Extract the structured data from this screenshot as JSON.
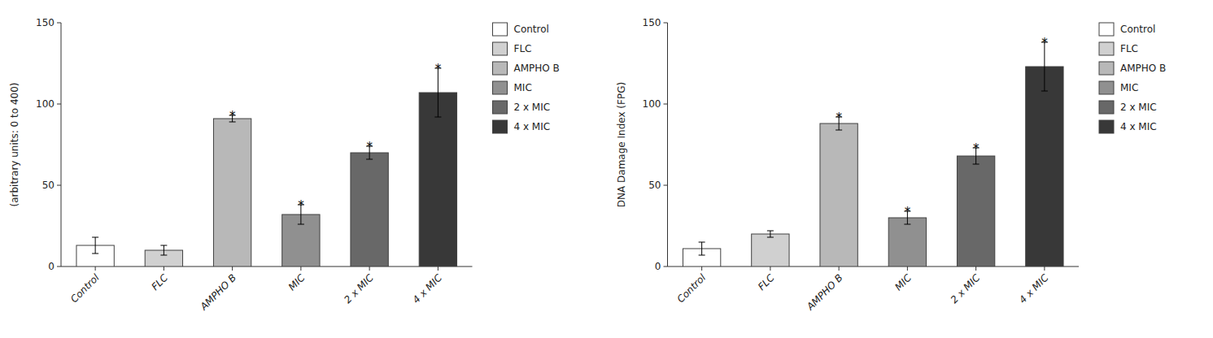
{
  "chart_data": [
    {
      "type": "bar",
      "categories": [
        "Control",
        "FLC",
        "AMPHO B",
        "MIC",
        "2 x MIC",
        "4 x MIC"
      ],
      "values": [
        13,
        10,
        91,
        32,
        70,
        107
      ],
      "errors": [
        5,
        3,
        2,
        6,
        4,
        15
      ],
      "colors": [
        "#ffffff",
        "#d0d0d0",
        "#b8b8b8",
        "#909090",
        "#686868",
        "#383838"
      ],
      "y_label": "(arbitrary units: 0 to 400)",
      "ylim": [
        0,
        150
      ],
      "yticks": [
        0,
        50,
        100,
        150
      ],
      "annotations": [
        null,
        null,
        "*",
        "*",
        "*",
        "*"
      ],
      "legend": "right"
    },
    {
      "type": "bar",
      "categories": [
        "Control",
        "FLC",
        "AMPHO B",
        "MIC",
        "2 x MIC",
        "4 x MIC"
      ],
      "values": [
        11,
        20,
        88,
        30,
        68,
        123
      ],
      "errors": [
        4,
        2,
        4,
        4,
        5,
        15
      ],
      "colors": [
        "#ffffff",
        "#d0d0d0",
        "#b8b8b8",
        "#909090",
        "#686868",
        "#383838"
      ],
      "y_label": "DNA Damage Index (FPG)",
      "ylim": [
        0,
        150
      ],
      "yticks": [
        0,
        50,
        100,
        150
      ],
      "annotations": [
        null,
        null,
        "*",
        "*",
        "*",
        "*"
      ],
      "legend": "right"
    }
  ]
}
